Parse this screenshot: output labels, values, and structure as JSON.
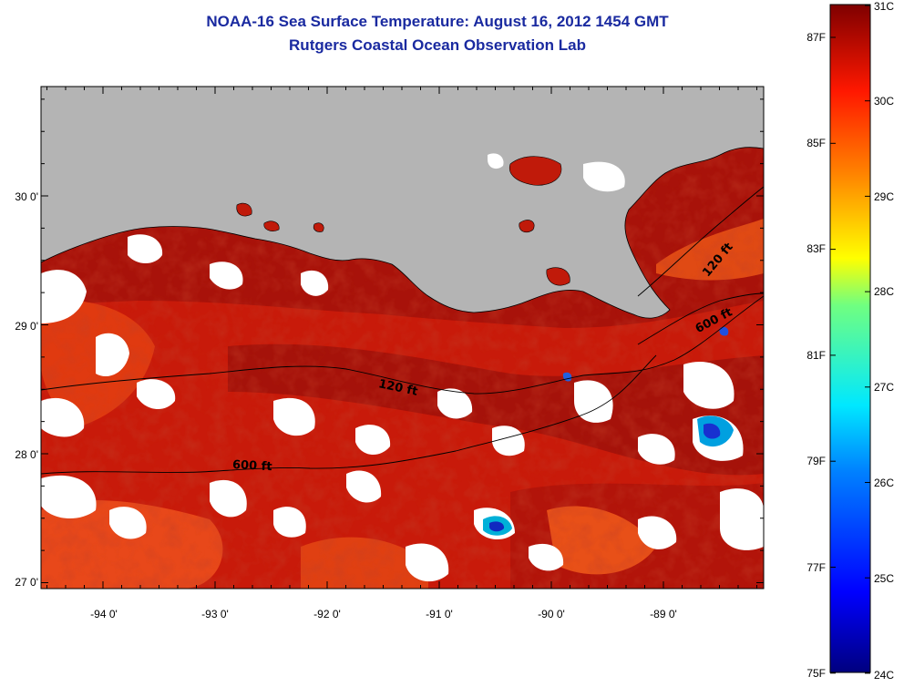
{
  "header": {
    "title": "NOAA-16 Sea Surface Temperature:  August 16, 2012 1454 GMT",
    "subtitle": "Rutgers Coastal Ocean Observation Lab"
  },
  "map": {
    "lat_labels": [
      "30 0'",
      "29 0'",
      "28 0'",
      "27 0'"
    ],
    "lon_labels": [
      "-94 0'",
      "-93 0'",
      "-92 0'",
      "-91 0'",
      "-90 0'",
      "-89 0'"
    ],
    "contour_labels": {
      "c120_east": "120 ft",
      "c600_east": "600 ft",
      "c120_mid": "120 ft",
      "c600_west": "600 ft"
    },
    "colors": {
      "land": "#b4b4b4",
      "cloud": "#ffffff",
      "sea_warm": "#c81a0a",
      "sea_hot": "#8a0c06",
      "sea_cool": "#e84010"
    }
  },
  "colorbar": {
    "fahrenheit": [
      "87F",
      "85F",
      "83F",
      "81F",
      "79F",
      "77F",
      "75F"
    ],
    "celsius": [
      "31C",
      "30C",
      "29C",
      "28C",
      "27C",
      "26C",
      "25C",
      "24C"
    ]
  }
}
